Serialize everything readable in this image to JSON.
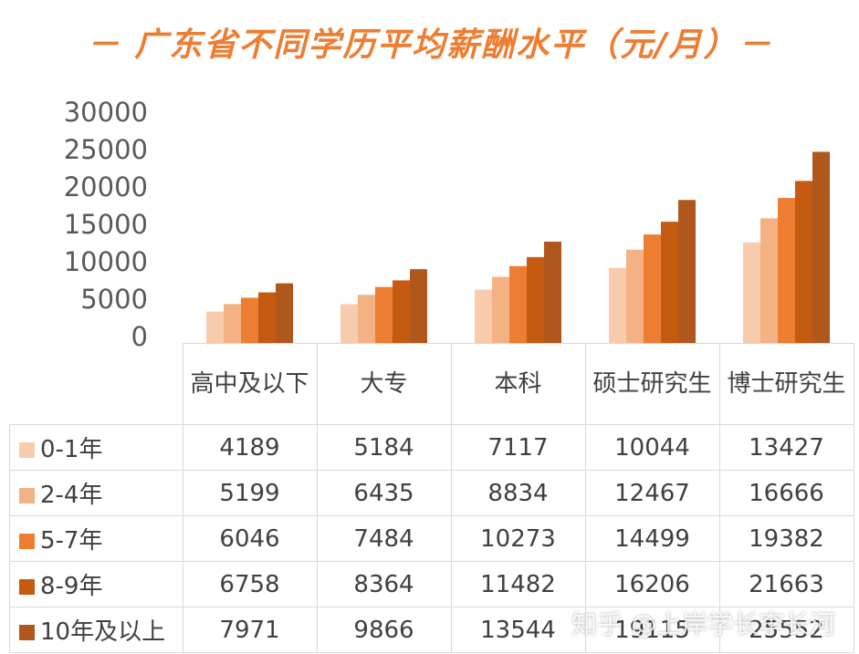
{
  "title": "－ 广东省不同学历平均薪酬水平（元/月）－",
  "watermark": "知乎 @上岸学长李长河",
  "chart_data": {
    "type": "bar",
    "categories": [
      "高中及以下",
      "大专",
      "本科",
      "硕士研究生",
      "博士研究生"
    ],
    "series": [
      {
        "name": "0-1年",
        "color": "#F8CBAD",
        "values": [
          4189,
          5184,
          7117,
          10044,
          13427
        ]
      },
      {
        "name": "2-4年",
        "color": "#F4B183",
        "values": [
          5199,
          6435,
          8834,
          12467,
          16666
        ]
      },
      {
        "name": "5-7年",
        "color": "#ED7D31",
        "values": [
          6046,
          7484,
          10273,
          14499,
          19382
        ]
      },
      {
        "name": "8-9年",
        "color": "#C55A11",
        "values": [
          6758,
          8364,
          11482,
          16206,
          21663
        ]
      },
      {
        "name": "10年及以上",
        "color": "#B0571E",
        "values": [
          7971,
          9866,
          13544,
          19115,
          25552
        ]
      }
    ],
    "yticks": [
      "30000",
      "25000",
      "20000",
      "15000",
      "10000",
      "5000",
      "0"
    ],
    "ylim": [
      0,
      30000
    ],
    "grid": false,
    "legend": "data-table"
  }
}
